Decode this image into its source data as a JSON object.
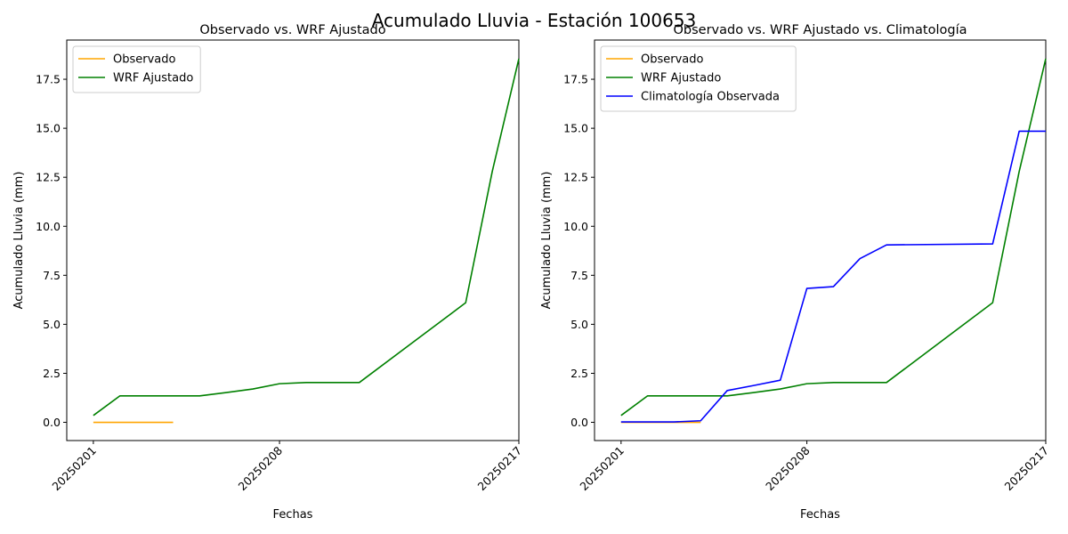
{
  "suptitle": "Acumulado Lluvia - Estación 100653",
  "chart_data": [
    {
      "type": "line",
      "title": "Observado vs. WRF Ajustado",
      "xlabel": "Fechas",
      "ylabel": "Acumulado Lluvia (mm)",
      "x_type": "date",
      "xticks": [
        "20250201",
        "20250208",
        "20250217"
      ],
      "x_tick_labels": [
        "20250201",
        "20250208",
        "20250217"
      ],
      "xlim": [
        "20250131",
        "20250217"
      ],
      "ylim": [
        -0.93,
        19.5
      ],
      "yticks": [
        0.0,
        2.5,
        5.0,
        7.5,
        10.0,
        12.5,
        15.0,
        17.5
      ],
      "ytick_labels": [
        "0.0",
        "2.5",
        "5.0",
        "7.5",
        "10.0",
        "12.5",
        "15.0",
        "17.5"
      ],
      "legend_position": "top-left",
      "grid": false,
      "series": [
        {
          "name": "Observado",
          "color": "#ffa500",
          "x": [
            "20250201",
            "20250202",
            "20250203",
            "20250204"
          ],
          "y": [
            0.0,
            0.0,
            0.0,
            0.0
          ]
        },
        {
          "name": "WRF Ajustado",
          "color": "#008000",
          "x": [
            "20250201",
            "20250202",
            "20250203",
            "20250204",
            "20250205",
            "20250206",
            "20250207",
            "20250208",
            "20250209",
            "20250210",
            "20250211",
            "20250215",
            "20250216",
            "20250217"
          ],
          "y": [
            0.35,
            1.35,
            1.35,
            1.35,
            1.35,
            1.52,
            1.7,
            1.97,
            2.03,
            2.03,
            2.03,
            6.1,
            12.8,
            18.55
          ]
        }
      ]
    },
    {
      "type": "line",
      "title": "Observado vs. WRF Ajustado vs. Climatología",
      "xlabel": "Fechas",
      "ylabel": "Acumulado Lluvia (mm)",
      "x_type": "date",
      "xticks": [
        "20250201",
        "20250208",
        "20250217"
      ],
      "x_tick_labels": [
        "20250201",
        "20250208",
        "20250217"
      ],
      "xlim": [
        "20250131",
        "20250217"
      ],
      "ylim": [
        -0.93,
        19.5
      ],
      "yticks": [
        0.0,
        2.5,
        5.0,
        7.5,
        10.0,
        12.5,
        15.0,
        17.5
      ],
      "ytick_labels": [
        "0.0",
        "2.5",
        "5.0",
        "7.5",
        "10.0",
        "12.5",
        "15.0",
        "17.5"
      ],
      "legend_position": "top-left",
      "grid": false,
      "series": [
        {
          "name": "Observado",
          "color": "#ffa500",
          "x": [
            "20250201",
            "20250202",
            "20250203",
            "20250204"
          ],
          "y": [
            0.0,
            0.0,
            0.0,
            0.0
          ]
        },
        {
          "name": "WRF Ajustado",
          "color": "#008000",
          "x": [
            "20250201",
            "20250202",
            "20250203",
            "20250204",
            "20250205",
            "20250206",
            "20250207",
            "20250208",
            "20250209",
            "20250210",
            "20250211",
            "20250215",
            "20250216",
            "20250217"
          ],
          "y": [
            0.35,
            1.35,
            1.35,
            1.35,
            1.35,
            1.52,
            1.7,
            1.97,
            2.03,
            2.03,
            2.03,
            6.1,
            12.8,
            18.55
          ]
        },
        {
          "name": "Climatología Observada",
          "color": "#0000ff",
          "x": [
            "20250201",
            "20250202",
            "20250203",
            "20250204",
            "20250205",
            "20250206",
            "20250207",
            "20250208",
            "20250209",
            "20250210",
            "20250211",
            "20250215",
            "20250216",
            "20250217"
          ],
          "y": [
            0.02,
            0.02,
            0.02,
            0.08,
            1.62,
            1.88,
            2.15,
            6.83,
            6.92,
            8.35,
            9.05,
            9.1,
            14.85,
            14.85
          ]
        }
      ]
    }
  ]
}
